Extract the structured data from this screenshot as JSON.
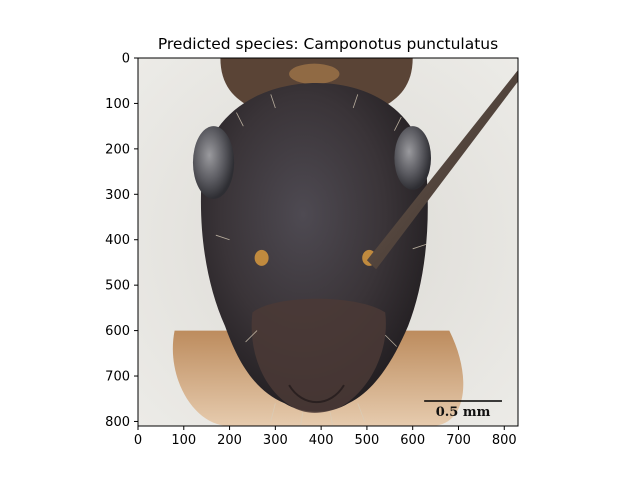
{
  "chart_data": {
    "type": "image",
    "title": "Predicted species: Camponotus punctulatus",
    "xlim": [
      0,
      830
    ],
    "ylim": [
      810,
      0
    ],
    "x_ticks": [
      0,
      100,
      200,
      300,
      400,
      500,
      600,
      700,
      800
    ],
    "y_ticks": [
      0,
      100,
      200,
      300,
      400,
      500,
      600,
      700,
      800
    ],
    "image_content": "ant-head-frontal-photo",
    "scale_bar": {
      "label": "0.5 mm",
      "x_start": 625,
      "x_end": 795,
      "y": 755
    }
  },
  "colors": {
    "background": "#e6e5e0",
    "head_dark": "#2b2a2e",
    "head_mid": "#4a4347",
    "mandible_brown": "#8a5a35",
    "body_orange": "#c58a50",
    "antenna": "#4e403a"
  }
}
